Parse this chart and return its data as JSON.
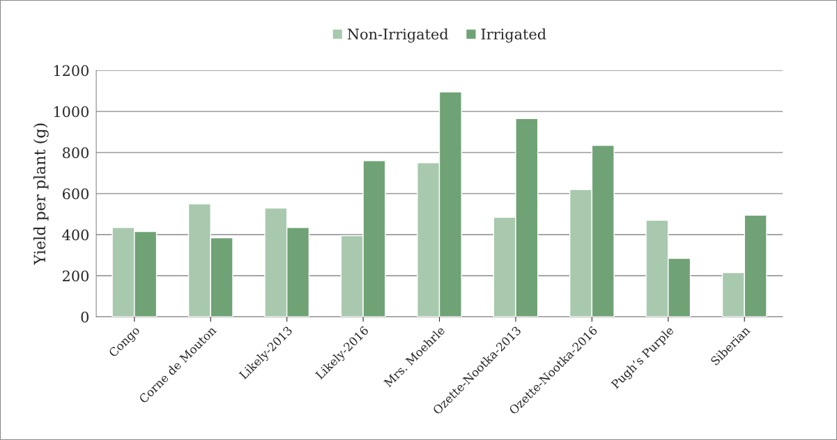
{
  "chart_data": {
    "type": "bar",
    "ylabel": "Yield per plant (g)",
    "categories": [
      "Congo",
      "Corne de Mouton",
      "Likely-2013",
      "Likely-2016",
      "Mrs. Moehrle",
      "Ozette-Nootka-2013",
      "Ozette-Nootka-2016",
      "Pugh’s Purple",
      "Siberian"
    ],
    "series": [
      {
        "name": "Non-Irrigated",
        "color": "#a9c9ae",
        "values": [
          435,
          550,
          530,
          395,
          750,
          485,
          620,
          470,
          215
        ]
      },
      {
        "name": "Irrigated",
        "color": "#6fa275",
        "values": [
          415,
          385,
          435,
          760,
          1095,
          965,
          835,
          285,
          495
        ]
      }
    ],
    "ylim": [
      0,
      1200
    ],
    "yticks": [
      0,
      200,
      400,
      600,
      800,
      1000,
      1200
    ],
    "grid": "y",
    "legend": "top"
  }
}
